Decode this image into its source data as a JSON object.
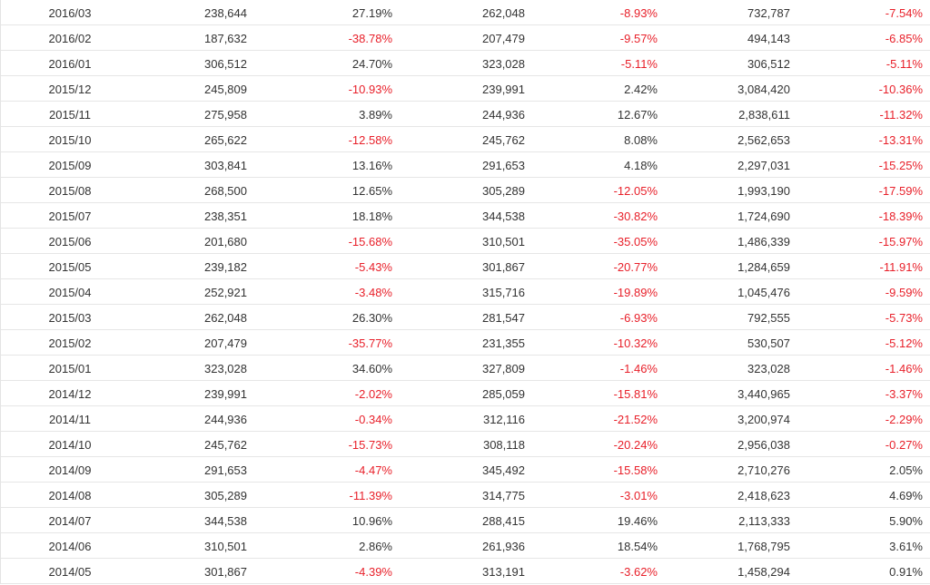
{
  "colors": {
    "negative": "#e8202a",
    "positive": "#333333",
    "grid": "#e6e6e6"
  },
  "rows": [
    {
      "month": "2016/03",
      "v1": "238,644",
      "p1": "27.19%",
      "v2": "262,048",
      "p2": "-8.93%",
      "v3": "732,787",
      "p3": "-7.54%"
    },
    {
      "month": "2016/02",
      "v1": "187,632",
      "p1": "-38.78%",
      "v2": "207,479",
      "p2": "-9.57%",
      "v3": "494,143",
      "p3": "-6.85%"
    },
    {
      "month": "2016/01",
      "v1": "306,512",
      "p1": "24.70%",
      "v2": "323,028",
      "p2": "-5.11%",
      "v3": "306,512",
      "p3": "-5.11%"
    },
    {
      "month": "2015/12",
      "v1": "245,809",
      "p1": "-10.93%",
      "v2": "239,991",
      "p2": "2.42%",
      "v3": "3,084,420",
      "p3": "-10.36%"
    },
    {
      "month": "2015/11",
      "v1": "275,958",
      "p1": "3.89%",
      "v2": "244,936",
      "p2": "12.67%",
      "v3": "2,838,611",
      "p3": "-11.32%"
    },
    {
      "month": "2015/10",
      "v1": "265,622",
      "p1": "-12.58%",
      "v2": "245,762",
      "p2": "8.08%",
      "v3": "2,562,653",
      "p3": "-13.31%"
    },
    {
      "month": "2015/09",
      "v1": "303,841",
      "p1": "13.16%",
      "v2": "291,653",
      "p2": "4.18%",
      "v3": "2,297,031",
      "p3": "-15.25%"
    },
    {
      "month": "2015/08",
      "v1": "268,500",
      "p1": "12.65%",
      "v2": "305,289",
      "p2": "-12.05%",
      "v3": "1,993,190",
      "p3": "-17.59%"
    },
    {
      "month": "2015/07",
      "v1": "238,351",
      "p1": "18.18%",
      "v2": "344,538",
      "p2": "-30.82%",
      "v3": "1,724,690",
      "p3": "-18.39%"
    },
    {
      "month": "2015/06",
      "v1": "201,680",
      "p1": "-15.68%",
      "v2": "310,501",
      "p2": "-35.05%",
      "v3": "1,486,339",
      "p3": "-15.97%"
    },
    {
      "month": "2015/05",
      "v1": "239,182",
      "p1": "-5.43%",
      "v2": "301,867",
      "p2": "-20.77%",
      "v3": "1,284,659",
      "p3": "-11.91%"
    },
    {
      "month": "2015/04",
      "v1": "252,921",
      "p1": "-3.48%",
      "v2": "315,716",
      "p2": "-19.89%",
      "v3": "1,045,476",
      "p3": "-9.59%"
    },
    {
      "month": "2015/03",
      "v1": "262,048",
      "p1": "26.30%",
      "v2": "281,547",
      "p2": "-6.93%",
      "v3": "792,555",
      "p3": "-5.73%"
    },
    {
      "month": "2015/02",
      "v1": "207,479",
      "p1": "-35.77%",
      "v2": "231,355",
      "p2": "-10.32%",
      "v3": "530,507",
      "p3": "-5.12%"
    },
    {
      "month": "2015/01",
      "v1": "323,028",
      "p1": "34.60%",
      "v2": "327,809",
      "p2": "-1.46%",
      "v3": "323,028",
      "p3": "-1.46%"
    },
    {
      "month": "2014/12",
      "v1": "239,991",
      "p1": "-2.02%",
      "v2": "285,059",
      "p2": "-15.81%",
      "v3": "3,440,965",
      "p3": "-3.37%"
    },
    {
      "month": "2014/11",
      "v1": "244,936",
      "p1": "-0.34%",
      "v2": "312,116",
      "p2": "-21.52%",
      "v3": "3,200,974",
      "p3": "-2.29%"
    },
    {
      "month": "2014/10",
      "v1": "245,762",
      "p1": "-15.73%",
      "v2": "308,118",
      "p2": "-20.24%",
      "v3": "2,956,038",
      "p3": "-0.27%"
    },
    {
      "month": "2014/09",
      "v1": "291,653",
      "p1": "-4.47%",
      "v2": "345,492",
      "p2": "-15.58%",
      "v3": "2,710,276",
      "p3": "2.05%"
    },
    {
      "month": "2014/08",
      "v1": "305,289",
      "p1": "-11.39%",
      "v2": "314,775",
      "p2": "-3.01%",
      "v3": "2,418,623",
      "p3": "4.69%"
    },
    {
      "month": "2014/07",
      "v1": "344,538",
      "p1": "10.96%",
      "v2": "288,415",
      "p2": "19.46%",
      "v3": "2,113,333",
      "p3": "5.90%"
    },
    {
      "month": "2014/06",
      "v1": "310,501",
      "p1": "2.86%",
      "v2": "261,936",
      "p2": "18.54%",
      "v3": "1,768,795",
      "p3": "3.61%"
    },
    {
      "month": "2014/05",
      "v1": "301,867",
      "p1": "-4.39%",
      "v2": "313,191",
      "p2": "-3.62%",
      "v3": "1,458,294",
      "p3": "0.91%"
    }
  ]
}
